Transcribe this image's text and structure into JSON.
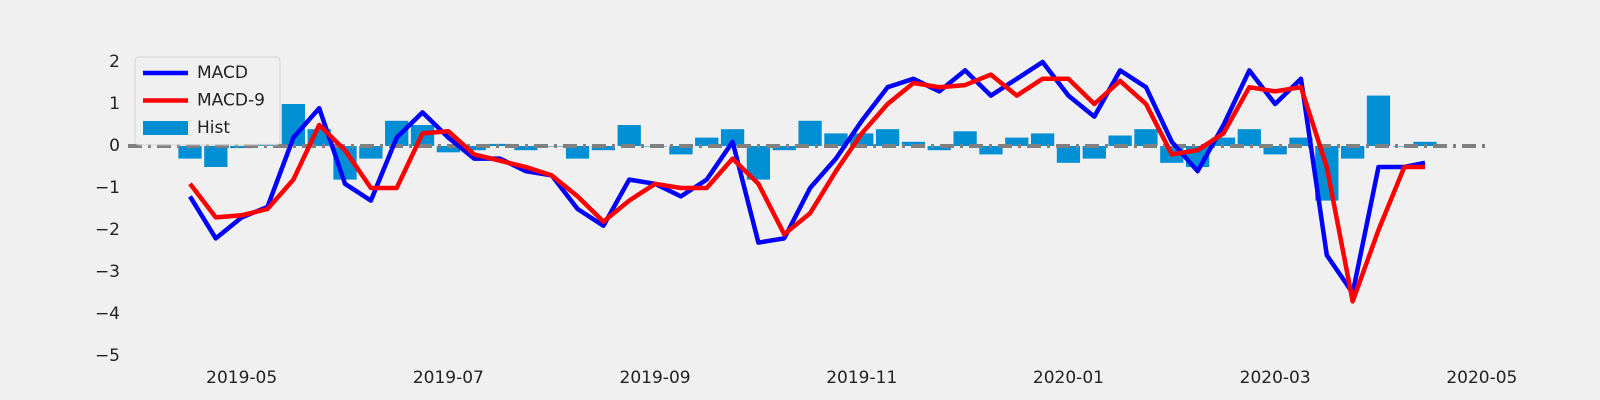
{
  "chart_data": {
    "type": "line",
    "x": [
      4.5,
      4.75,
      5,
      5.25,
      5.5,
      5.75,
      6,
      6.25,
      6.5,
      6.75,
      7,
      7.25,
      7.5,
      7.75,
      8,
      8.25,
      8.5,
      8.75,
      9,
      9.25,
      9.5,
      9.75,
      10,
      10.25,
      10.5,
      10.75,
      11,
      11.25,
      11.5,
      11.75,
      12,
      12.25,
      12.5,
      12.75,
      13,
      13.25,
      13.5,
      13.75,
      14,
      14.25,
      14.5,
      14.75,
      15,
      15.25,
      15.5,
      15.75,
      16,
      16.25,
      16.45
    ],
    "series": [
      {
        "name": "MACD",
        "color": "#0000ff",
        "type": "line",
        "values": [
          -1.2,
          -2.2,
          -1.7,
          -1.45,
          0.2,
          0.9,
          -0.9,
          -1.3,
          0.2,
          0.8,
          0.2,
          -0.3,
          -0.3,
          -0.6,
          -0.7,
          -1.5,
          -1.9,
          -0.8,
          -0.9,
          -1.2,
          -0.8,
          0.1,
          -2.3,
          -2.2,
          -1.0,
          -0.3,
          0.6,
          1.4,
          1.6,
          1.3,
          1.8,
          1.2,
          1.6,
          2.0,
          1.2,
          0.7,
          1.8,
          1.4,
          0.1,
          -0.6,
          0.5,
          1.8,
          1.0,
          1.6,
          -2.6,
          -3.5,
          -0.5,
          -0.5,
          -0.4
        ]
      },
      {
        "name": "MACD-9",
        "color": "#ff0000",
        "type": "line",
        "values": [
          -0.9,
          -1.7,
          -1.65,
          -1.5,
          -0.8,
          0.5,
          -0.1,
          -1.0,
          -1.0,
          0.3,
          0.35,
          -0.2,
          -0.35,
          -0.5,
          -0.7,
          -1.2,
          -1.8,
          -1.3,
          -0.9,
          -1.0,
          -1.0,
          -0.3,
          -0.9,
          -2.1,
          -1.6,
          -0.6,
          0.3,
          1.0,
          1.5,
          1.4,
          1.45,
          1.7,
          1.2,
          1.6,
          1.6,
          1.0,
          1.55,
          1.0,
          -0.2,
          -0.1,
          0.3,
          1.4,
          1.3,
          1.4,
          -0.5,
          -3.7,
          -2.0,
          -0.5,
          -0.5
        ]
      },
      {
        "name": "Hist",
        "color": "#008fd5",
        "type": "bar",
        "values": [
          -0.3,
          -0.5,
          -0.05,
          0.05,
          1.0,
          0.4,
          -0.8,
          -0.3,
          0.6,
          0.5,
          -0.15,
          -0.1,
          0.05,
          -0.1,
          0,
          -0.3,
          -0.1,
          0.5,
          0,
          -0.2,
          0.2,
          0.4,
          -0.8,
          -0.1,
          0.6,
          0.3,
          0.3,
          0.4,
          0.1,
          -0.1,
          0.35,
          -0.2,
          0.2,
          0.3,
          -0.4,
          -0.3,
          0.25,
          0.4,
          -0.4,
          -0.5,
          0.2,
          0.4,
          -0.2,
          0.2,
          -1.3,
          -0.3,
          1.2,
          0,
          0.1
        ]
      }
    ],
    "hline": 0,
    "xlim": [
      3.9,
      17.05
    ],
    "xticks": [
      {
        "value": 5,
        "label": "2019-05"
      },
      {
        "value": 7,
        "label": "2019-07"
      },
      {
        "value": 9,
        "label": "2019-09"
      },
      {
        "value": 11,
        "label": "2019-11"
      },
      {
        "value": 13,
        "label": "2020-01"
      },
      {
        "value": 15,
        "label": "2020-03"
      },
      {
        "value": 17,
        "label": "2020-05"
      }
    ],
    "ylim": [
      -5.2,
      2.6
    ],
    "yticks": [
      {
        "value": -5,
        "label": "−5"
      },
      {
        "value": -4,
        "label": "−4"
      },
      {
        "value": -3,
        "label": "−3"
      },
      {
        "value": -2,
        "label": "−2"
      },
      {
        "value": -1,
        "label": "−1"
      },
      0,
      1,
      2
    ],
    "legend": "upper left"
  }
}
